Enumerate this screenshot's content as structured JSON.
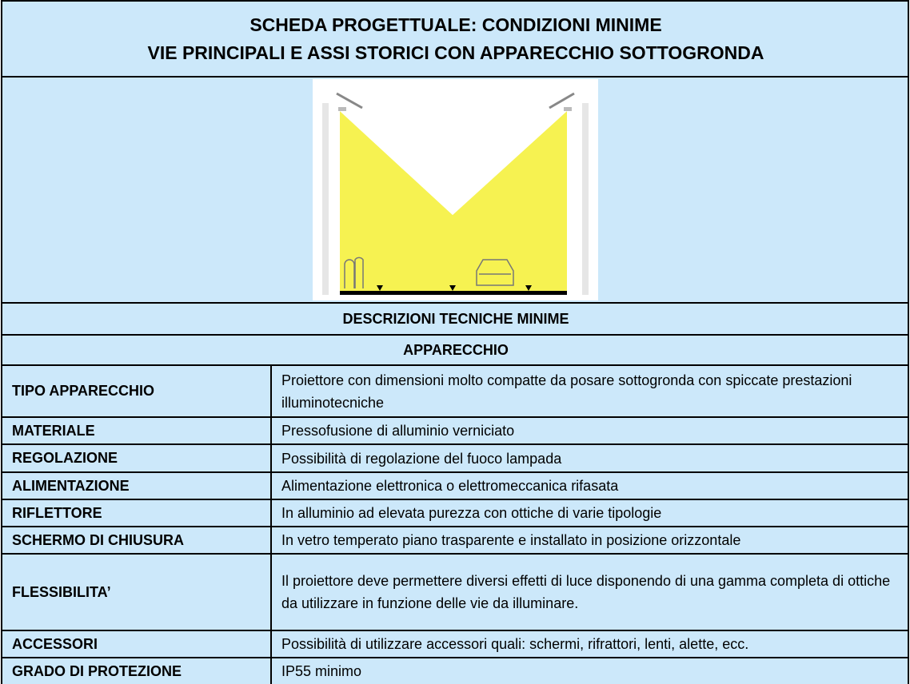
{
  "header": {
    "title": [
      "SCHEDA PROGETTUALE: CONDIZIONI MINIME",
      "VIE PRINCIPALI E ASSI STORICI CON APPARECCHIO SOTTOGRONDA"
    ]
  },
  "table": {
    "section": "DESCRIZIONI TECNICHE MINIME",
    "subsection": "APPARECCHIO",
    "rows": [
      [
        "TIPO APPARECCHIO",
        "Proiettore con dimensioni molto compatte da posare sottogronda con spiccate prestazioni illuminotecniche"
      ],
      [
        "MATERIALE",
        "Pressofusione di alluminio verniciato"
      ],
      [
        "REGOLAZIONE",
        "Possibilità di regolazione del fuoco lampada"
      ],
      [
        "ALIMENTAZIONE",
        "Alimentazione elettronica o elettromeccanica rifasata"
      ],
      [
        "RIFLETTORE",
        "In alluminio ad elevata purezza con ottiche di varie tipologie"
      ],
      [
        "SCHERMO DI CHIUSURA",
        "In vetro temperato piano trasparente e installato in posizione orizzontale"
      ],
      [
        "FLESSIBILITA’",
        "Il proiettore deve permettere diversi effetti di luce disponendo di una gamma completa di ottiche da utilizzare in funzione delle vie da illuminare."
      ],
      [
        "ACCESSORI",
        "Possibilità di utilizzare accessori quali: schermi, rifrattori, lenti, alette, ecc."
      ],
      [
        "GRADO DI PROTEZIONE",
        "IP55 minimo"
      ]
    ]
  }
}
